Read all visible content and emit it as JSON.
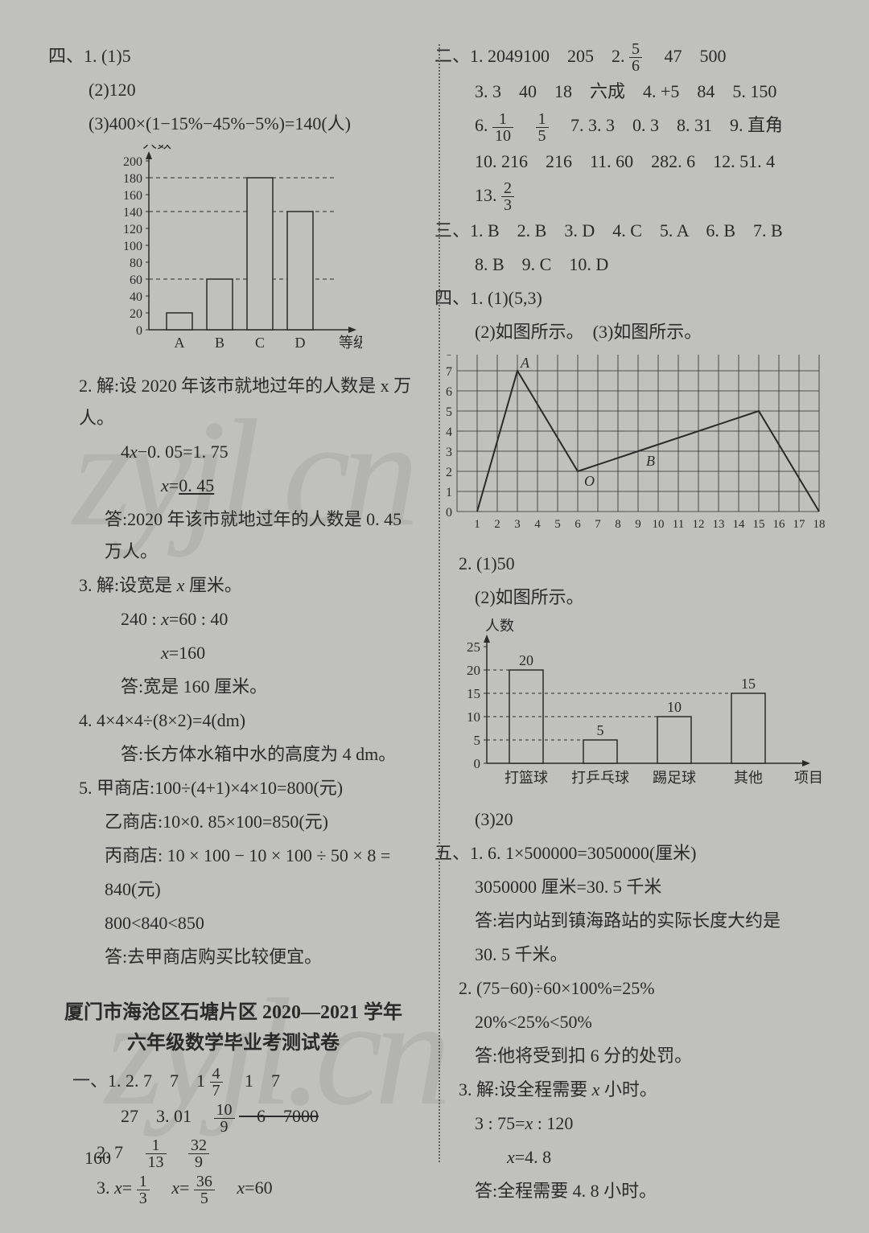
{
  "left": {
    "q4_1_1": "四、1. (1)5",
    "q4_1_2": "(2)120",
    "q4_1_3": "(3)400×(1−15%−45%−5%)=140(人)",
    "chart1": {
      "ylabel": "人数",
      "xlabel": "等级",
      "ymax": 200,
      "ytick": 20,
      "categories": [
        "A",
        "B",
        "C",
        "D"
      ],
      "values": [
        20,
        60,
        180,
        140
      ],
      "dashed_levels": [
        60,
        180,
        140
      ],
      "bar_fill": "#c0c0bd",
      "bar_stroke": "#2a2a2a",
      "axis_color": "#2a2a2a"
    },
    "p2a": "2. 解:设 2020 年该市就地过年的人数是 x 万人。",
    "p2b": "4x−0. 05=1. 75",
    "p2c": "x=0. 45",
    "p2d": "答:2020 年该市就地过年的人数是 0. 45 万人。",
    "p3a": "3. 解:设宽是 x 厘米。",
    "p3b": "240 : x=60 : 40",
    "p3c": "x=160",
    "p3d": "答:宽是 160 厘米。",
    "p4a": "4. 4×4×4÷(8×2)=4(dm)",
    "p4b": "答:长方体水箱中水的高度为 4 dm。",
    "p5a": "5. 甲商店:100÷(4+1)×4×10=800(元)",
    "p5b": "乙商店:10×0. 85×100=850(元)",
    "p5c": "丙商店: 10 × 100 − 10 × 100 ÷ 50 × 8 =",
    "p5d": "840(元)",
    "p5e": "800<840<850",
    "p5f": "答:去甲商店购买比较便宜。",
    "title1": "厦门市海沧区石塘片区 2020—2021 学年",
    "title2": "六年级数学毕业考测试卷",
    "yi_a": "一、1. 2. 7　7　1",
    "yi_a_frac": {
      "n": "4",
      "d": "7"
    },
    "yi_a2": "　1　7",
    "yi_b": "27　3. 01　",
    "yi_b_frac": {
      "n": "10",
      "d": "9"
    },
    "yi_b2": "　6　7000",
    "yi_c": "2. 7　",
    "yi_c_f1": {
      "n": "1",
      "d": "13"
    },
    "yi_c_f2": {
      "n": "32",
      "d": "9"
    },
    "yi_d_pre": "3. x=",
    "yi_d_f1": {
      "n": "1",
      "d": "3"
    },
    "yi_d_mid": "　x=",
    "yi_d_f2": {
      "n": "36",
      "d": "5"
    },
    "yi_d_end": "　x=60"
  },
  "right": {
    "er_1a": "二、1. 2049100　205　2.",
    "er_1_frac": {
      "n": "5",
      "d": "6"
    },
    "er_1b": "　47　500",
    "er_3": "3. 3　40　18　六成　4. +5　84　5. 150",
    "er_6a": "6.",
    "er_6_f1": {
      "n": "1",
      "d": "10"
    },
    "er_6_f2": {
      "n": "1",
      "d": "5"
    },
    "er_6b": "　7. 3. 3　0. 3　8. 31　9. 直角",
    "er_10": "10. 216　216　11. 60　282. 6　12. 51. 4",
    "er_13a": "13.",
    "er_13_frac": {
      "n": "2",
      "d": "3"
    },
    "san_1": "三、1. B　2. B　3. D　4. C　5. A　6. B　7. B",
    "san_2": "8. B　9. C　10. D",
    "si_1": "四、1. (1)(5,3)",
    "si_2": "(2)如图所示。　(3)如图所示。",
    "grid": {
      "xmax": 18,
      "ymax": 8,
      "labels": {
        "A": "A",
        "O": "O",
        "B": "B"
      },
      "polyline1": [
        [
          1,
          0
        ],
        [
          3,
          7
        ],
        [
          6,
          2
        ],
        [
          9,
          3
        ]
      ],
      "polyline2": [
        [
          9,
          3
        ],
        [
          15,
          5
        ],
        [
          18,
          0
        ]
      ],
      "grid_color": "#2a2a2a"
    },
    "p2_1": "2. (1)50",
    "p2_2": "(2)如图所示。",
    "chart2": {
      "ylabel": "人数",
      "xlabel": "项目",
      "ymax": 25,
      "ytick": 5,
      "categories": [
        "打篮球",
        "打乒乓球",
        "踢足球",
        "其他"
      ],
      "values": [
        20,
        5,
        10,
        15
      ],
      "bar_fill": "#c0c0bd",
      "bar_stroke": "#2a2a2a",
      "axis_color": "#2a2a2a"
    },
    "p2_3": "(3)20",
    "wu_1a": "五、1. 6. 1×500000=3050000(厘米)",
    "wu_1b": "3050000 厘米=30. 5 千米",
    "wu_1c": "答:岩内站到镇海路站的实际长度大约是",
    "wu_1d": "30. 5 千米。",
    "wu_2a": "2. (75−60)÷60×100%=25%",
    "wu_2b": "20%<25%<50%",
    "wu_2c": "答:他将受到扣 6 分的处罚。",
    "wu_3a": "3. 解:设全程需要 x 小时。",
    "wu_3b": "3 : 75=x : 120",
    "wu_3c": "x=4. 8",
    "wu_3d": "答:全程需要 4. 8 小时。"
  },
  "page_number": "160"
}
